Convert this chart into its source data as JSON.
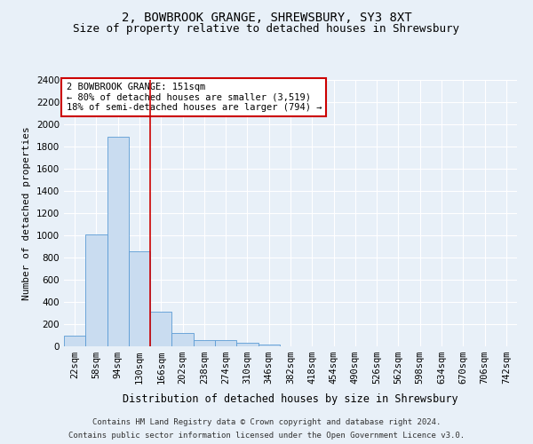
{
  "title": "2, BOWBROOK GRANGE, SHREWSBURY, SY3 8XT",
  "subtitle": "Size of property relative to detached houses in Shrewsbury",
  "xlabel": "Distribution of detached houses by size in Shrewsbury",
  "ylabel": "Number of detached properties",
  "bin_labels": [
    "22sqm",
    "58sqm",
    "94sqm",
    "130sqm",
    "166sqm",
    "202sqm",
    "238sqm",
    "274sqm",
    "310sqm",
    "346sqm",
    "382sqm",
    "418sqm",
    "454sqm",
    "490sqm",
    "526sqm",
    "562sqm",
    "598sqm",
    "634sqm",
    "670sqm",
    "706sqm",
    "742sqm"
  ],
  "bar_heights": [
    100,
    1010,
    1890,
    860,
    315,
    120,
    60,
    55,
    35,
    20,
    0,
    0,
    0,
    0,
    0,
    0,
    0,
    0,
    0,
    0,
    0
  ],
  "bar_color": "#c9dcf0",
  "bar_edge_color": "#5b9bd5",
  "ylim": [
    0,
    2400
  ],
  "yticks": [
    0,
    200,
    400,
    600,
    800,
    1000,
    1200,
    1400,
    1600,
    1800,
    2000,
    2200,
    2400
  ],
  "annotation_title": "2 BOWBROOK GRANGE: 151sqm",
  "annotation_line1": "← 80% of detached houses are smaller (3,519)",
  "annotation_line2": "18% of semi-detached houses are larger (794) →",
  "annotation_box_color": "#ffffff",
  "annotation_box_edge_color": "#cc0000",
  "property_line_color": "#cc0000",
  "property_line_x": 3.5,
  "background_color": "#e8f0f8",
  "plot_bg_color": "#e8f0f8",
  "grid_color": "#c8d4e0",
  "footer_line1": "Contains HM Land Registry data © Crown copyright and database right 2024.",
  "footer_line2": "Contains public sector information licensed under the Open Government Licence v3.0.",
  "title_fontsize": 10,
  "subtitle_fontsize": 9,
  "xlabel_fontsize": 8.5,
  "ylabel_fontsize": 8,
  "tick_fontsize": 7.5,
  "annotation_fontsize": 7.5,
  "footer_fontsize": 6.5
}
